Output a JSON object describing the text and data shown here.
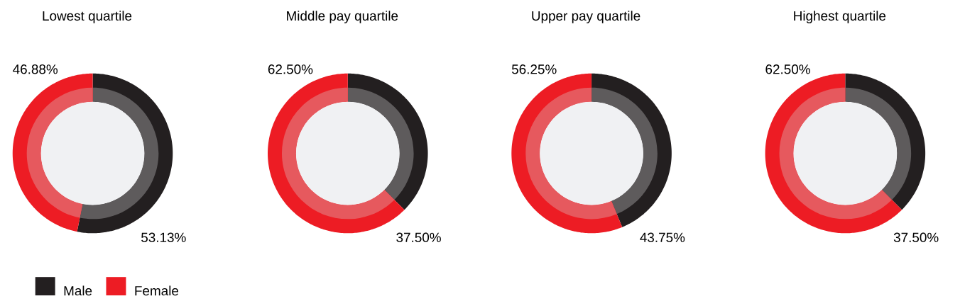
{
  "chart_data": [
    {
      "type": "donut",
      "title": "Lowest quartile",
      "categories": [
        "Male",
        "Female"
      ],
      "values": [
        53.13,
        46.88
      ],
      "value_labels": [
        "53.13%",
        "46.88%"
      ],
      "colors": [
        "#231f20",
        "#ed1c24"
      ],
      "legend": "bottom"
    },
    {
      "type": "donut",
      "title": "Middle pay quartile",
      "values": [
        37.5,
        62.5
      ],
      "value_labels": [
        "37.50%",
        "62.50%"
      ],
      "colors": [
        "#231f20",
        "#ed1c24"
      ]
    },
    {
      "type": "donut",
      "title": "Upper pay quartile",
      "values": [
        43.75,
        56.25
      ],
      "value_labels": [
        "43.75%",
        "56.25%"
      ],
      "colors": [
        "#231f20",
        "#ed1c24"
      ]
    },
    {
      "type": "donut",
      "title": "Highest quartile",
      "values": [
        37.5,
        62.5
      ],
      "value_labels": [
        "37.50%",
        "62.50%"
      ],
      "colors": [
        "#231f20",
        "#ed1c24"
      ]
    }
  ]
}
